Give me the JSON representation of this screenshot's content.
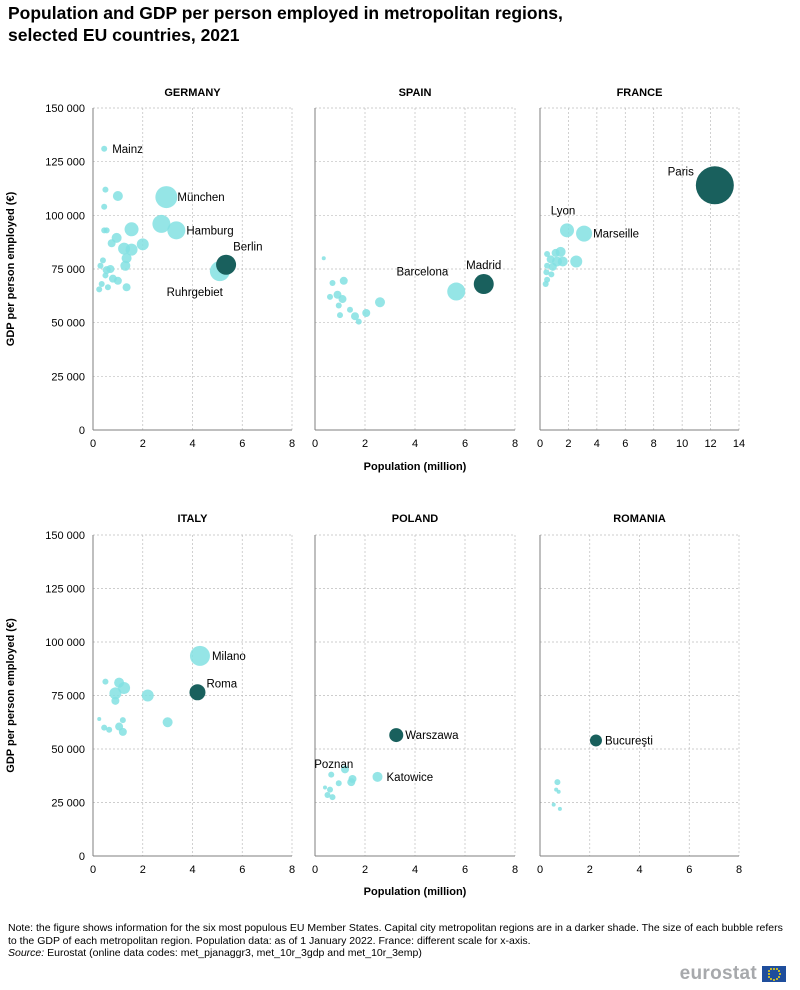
{
  "title": {
    "line1": "Population and GDP per person employed in metropolitan regions,",
    "line2": "selected EU countries, 2021"
  },
  "colors": {
    "capital": "#19605d",
    "other": "#83e0e2",
    "grid": "#bdbdbd",
    "axis": "#7f7f7f"
  },
  "chart_data": [
    {
      "type": "scatter",
      "panel": "GERMANY",
      "title": "GERMANY",
      "xlim": [
        0,
        8
      ],
      "xticks": [
        "0",
        "2",
        "4",
        "6",
        "8"
      ],
      "ylim": [
        0,
        150000
      ],
      "yticks": [
        "0",
        "25 000",
        "50 000",
        "75 000",
        "100 000",
        "125 000",
        "150 000"
      ],
      "ylabel": "GDP per person employed (€)",
      "xlabel": "",
      "points": [
        {
          "x": 0.45,
          "y": 131000,
          "s": 3,
          "label": "Mainz"
        },
        {
          "x": 0.5,
          "y": 112000,
          "s": 3
        },
        {
          "x": 1.0,
          "y": 109000,
          "s": 5
        },
        {
          "x": 0.45,
          "y": 104000,
          "s": 3
        },
        {
          "x": 2.95,
          "y": 108500,
          "s": 11,
          "label": "München"
        },
        {
          "x": 0.45,
          "y": 93000,
          "s": 3
        },
        {
          "x": 0.55,
          "y": 93000,
          "s": 3
        },
        {
          "x": 0.95,
          "y": 89500,
          "s": 5
        },
        {
          "x": 0.75,
          "y": 87000,
          "s": 4
        },
        {
          "x": 1.25,
          "y": 84500,
          "s": 6
        },
        {
          "x": 1.55,
          "y": 84000,
          "s": 6
        },
        {
          "x": 2.0,
          "y": 86500,
          "s": 6
        },
        {
          "x": 1.55,
          "y": 93500,
          "s": 7
        },
        {
          "x": 2.75,
          "y": 96000,
          "s": 9
        },
        {
          "x": 3.35,
          "y": 93000,
          "s": 9,
          "label": "Hamburg"
        },
        {
          "x": 1.35,
          "y": 80000,
          "s": 5
        },
        {
          "x": 0.4,
          "y": 79000,
          "s": 3
        },
        {
          "x": 0.3,
          "y": 76500,
          "s": 3
        },
        {
          "x": 0.55,
          "y": 74500,
          "s": 4
        },
        {
          "x": 0.7,
          "y": 75000,
          "s": 4
        },
        {
          "x": 0.5,
          "y": 72000,
          "s": 3
        },
        {
          "x": 1.3,
          "y": 76500,
          "s": 5
        },
        {
          "x": 0.8,
          "y": 70500,
          "s": 4
        },
        {
          "x": 1.0,
          "y": 69500,
          "s": 4
        },
        {
          "x": 0.35,
          "y": 68000,
          "s": 3
        },
        {
          "x": 0.6,
          "y": 66500,
          "s": 3
        },
        {
          "x": 0.25,
          "y": 65500,
          "s": 3
        },
        {
          "x": 1.35,
          "y": 66500,
          "s": 4
        },
        {
          "x": 5.1,
          "y": 74000,
          "s": 10,
          "label": "Ruhrgebiet"
        },
        {
          "x": 5.35,
          "y": 77000,
          "s": 10,
          "capital": true,
          "label": "Berlin"
        }
      ]
    },
    {
      "type": "scatter",
      "panel": "SPAIN",
      "title": "SPAIN",
      "xlim": [
        0,
        8
      ],
      "xticks": [
        "0",
        "2",
        "4",
        "6",
        "8"
      ],
      "ylim": [
        0,
        150000
      ],
      "points": [
        {
          "x": 0.35,
          "y": 80000,
          "s": 2
        },
        {
          "x": 0.7,
          "y": 68500,
          "s": 3
        },
        {
          "x": 1.15,
          "y": 69500,
          "s": 4
        },
        {
          "x": 0.6,
          "y": 62000,
          "s": 3
        },
        {
          "x": 0.9,
          "y": 63000,
          "s": 4
        },
        {
          "x": 1.1,
          "y": 61000,
          "s": 4
        },
        {
          "x": 0.95,
          "y": 58000,
          "s": 3
        },
        {
          "x": 1.4,
          "y": 56000,
          "s": 3
        },
        {
          "x": 1.0,
          "y": 53500,
          "s": 3
        },
        {
          "x": 1.6,
          "y": 53000,
          "s": 4
        },
        {
          "x": 1.75,
          "y": 50500,
          "s": 3
        },
        {
          "x": 2.05,
          "y": 54500,
          "s": 4
        },
        {
          "x": 2.6,
          "y": 59500,
          "s": 5
        },
        {
          "x": 5.65,
          "y": 64500,
          "s": 9,
          "label": "Barcelona"
        },
        {
          "x": 6.75,
          "y": 68000,
          "s": 10,
          "capital": true,
          "label": "Madrid"
        }
      ]
    },
    {
      "type": "scatter",
      "panel": "FRANCE",
      "title": "FRANCE",
      "xlim": [
        0,
        14
      ],
      "xticks": [
        "0",
        "2",
        "4",
        "6",
        "8",
        "10",
        "12",
        "14"
      ],
      "ylim": [
        0,
        150000
      ],
      "points": [
        {
          "x": 0.5,
          "y": 82000,
          "s": 3
        },
        {
          "x": 1.1,
          "y": 82500,
          "s": 4
        },
        {
          "x": 1.45,
          "y": 83000,
          "s": 5
        },
        {
          "x": 0.75,
          "y": 79500,
          "s": 4
        },
        {
          "x": 1.2,
          "y": 78500,
          "s": 5
        },
        {
          "x": 1.6,
          "y": 78500,
          "s": 5
        },
        {
          "x": 0.5,
          "y": 76500,
          "s": 3
        },
        {
          "x": 0.9,
          "y": 76000,
          "s": 4
        },
        {
          "x": 0.45,
          "y": 73500,
          "s": 3
        },
        {
          "x": 0.8,
          "y": 72500,
          "s": 3
        },
        {
          "x": 0.5,
          "y": 70000,
          "s": 3
        },
        {
          "x": 0.4,
          "y": 68000,
          "s": 3
        },
        {
          "x": 2.55,
          "y": 78500,
          "s": 6
        },
        {
          "x": 1.9,
          "y": 93000,
          "s": 7,
          "label": "Lyon"
        },
        {
          "x": 3.1,
          "y": 91500,
          "s": 8,
          "label": "Marseille"
        },
        {
          "x": 12.3,
          "y": 114000,
          "s": 19,
          "capital": true,
          "label": "Paris"
        }
      ]
    },
    {
      "type": "scatter",
      "panel": "ITALY",
      "title": "ITALY",
      "xlim": [
        0,
        8
      ],
      "xticks": [
        "0",
        "2",
        "4",
        "6",
        "8"
      ],
      "ylim": [
        0,
        150000
      ],
      "ylabel": "GDP per person employed (€)",
      "points": [
        {
          "x": 0.5,
          "y": 81500,
          "s": 3
        },
        {
          "x": 1.05,
          "y": 81000,
          "s": 5
        },
        {
          "x": 1.25,
          "y": 78500,
          "s": 6
        },
        {
          "x": 0.9,
          "y": 76000,
          "s": 6
        },
        {
          "x": 0.9,
          "y": 72500,
          "s": 4
        },
        {
          "x": 2.2,
          "y": 75000,
          "s": 6
        },
        {
          "x": 0.25,
          "y": 64000,
          "s": 2
        },
        {
          "x": 1.2,
          "y": 63500,
          "s": 3
        },
        {
          "x": 3.0,
          "y": 62500,
          "s": 5
        },
        {
          "x": 0.45,
          "y": 60000,
          "s": 3
        },
        {
          "x": 0.65,
          "y": 59000,
          "s": 3
        },
        {
          "x": 1.05,
          "y": 60500,
          "s": 4
        },
        {
          "x": 1.2,
          "y": 58000,
          "s": 4
        },
        {
          "x": 4.3,
          "y": 93500,
          "s": 10,
          "label": "Milano"
        },
        {
          "x": 4.2,
          "y": 76500,
          "s": 8,
          "capital": true,
          "label": "Roma"
        }
      ]
    },
    {
      "type": "scatter",
      "panel": "POLAND",
      "title": "POLAND",
      "xlim": [
        0,
        8
      ],
      "xticks": [
        "0",
        "2",
        "4",
        "6",
        "8"
      ],
      "ylim": [
        0,
        150000
      ],
      "xlabel": "Population (million)",
      "points": [
        {
          "x": 0.65,
          "y": 38000,
          "s": 3
        },
        {
          "x": 1.2,
          "y": 40500,
          "s": 4
        },
        {
          "x": 1.5,
          "y": 36000,
          "s": 4
        },
        {
          "x": 0.95,
          "y": 34000,
          "s": 3
        },
        {
          "x": 1.45,
          "y": 34500,
          "s": 4
        },
        {
          "x": 0.4,
          "y": 32000,
          "s": 2
        },
        {
          "x": 0.6,
          "y": 31000,
          "s": 3
        },
        {
          "x": 0.5,
          "y": 28500,
          "s": 3
        },
        {
          "x": 0.7,
          "y": 27500,
          "s": 3
        },
        {
          "x": 2.5,
          "y": 37000,
          "s": 5,
          "label": "Katowice"
        },
        {
          "x": 0.75,
          "y": 43000,
          "s": 0,
          "label": "Poznan"
        },
        {
          "x": 3.25,
          "y": 56500,
          "s": 7,
          "capital": true,
          "label": "Warszawa"
        }
      ]
    },
    {
      "type": "scatter",
      "panel": "ROMANIA",
      "title": "ROMANIA",
      "xlim": [
        0,
        8
      ],
      "xticks": [
        "0",
        "2",
        "4",
        "6",
        "8"
      ],
      "ylim": [
        0,
        150000
      ],
      "points": [
        {
          "x": 0.7,
          "y": 34500,
          "s": 3
        },
        {
          "x": 0.65,
          "y": 31000,
          "s": 2
        },
        {
          "x": 0.75,
          "y": 30000,
          "s": 2
        },
        {
          "x": 0.55,
          "y": 24000,
          "s": 2
        },
        {
          "x": 0.8,
          "y": 22000,
          "s": 2
        },
        {
          "x": 2.25,
          "y": 54000,
          "s": 6,
          "capital": true,
          "label": "Bucureşti"
        }
      ]
    }
  ],
  "xlabel_top": "Population (million)",
  "xlabel_bottom": "Population (million)",
  "notes": {
    "note": "Note: the figure shows information for the six most populous EU Member States. Capital city metropolitan regions are in a darker shade. The size of each bubble refers to the GDP of each metropolitan region. Population data: as of 1 January 2022. France: different scale for x-axis.",
    "source_label": "Source:",
    "source_text": " Eurostat (online data codes: met_pjanaggr3, met_10r_3gdp and met_10r_3emp)"
  },
  "logo": {
    "text": "eurostat",
    "flag_icon": "eu-flag-icon"
  }
}
